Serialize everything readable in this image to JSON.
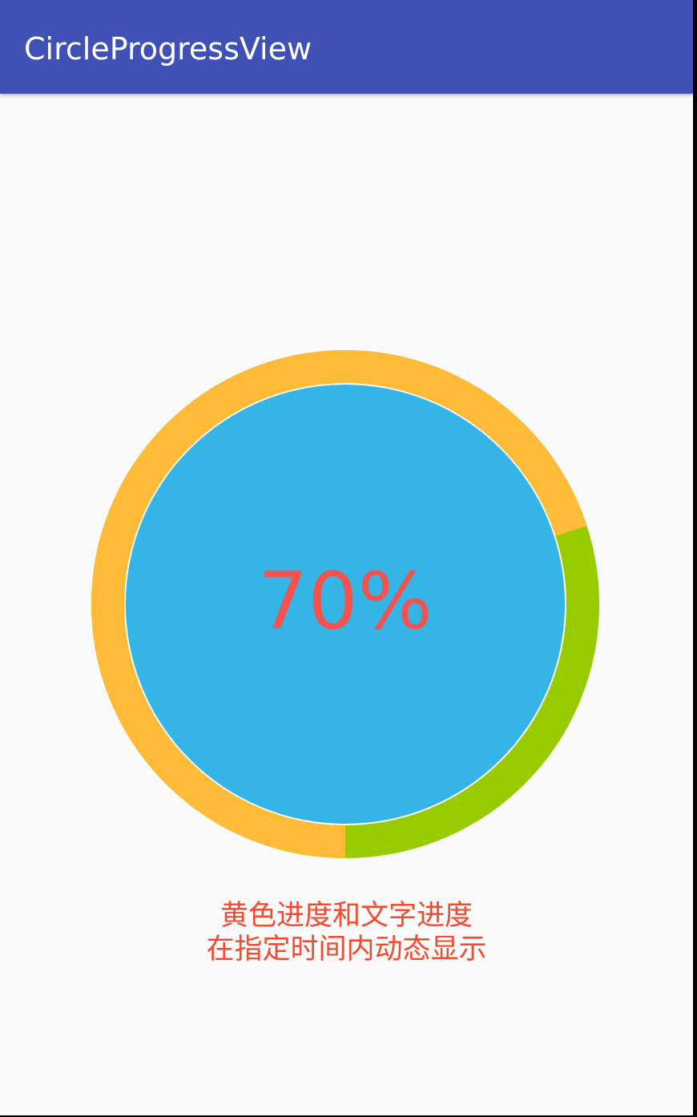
{
  "app_bar": {
    "title": "CircleProgressView"
  },
  "progress": {
    "percent_text": "70%",
    "value": 0.7,
    "colors": {
      "progress_ring": "#fdbb37",
      "remaining_ring": "#99cc00",
      "inner_fill": "#34b5e5",
      "percent_text": "#f5514f",
      "caption_text": "#f44a2f"
    }
  },
  "caption": {
    "line1": "黄色进度和文字进度",
    "line2": "在指定时间内动态显示"
  }
}
